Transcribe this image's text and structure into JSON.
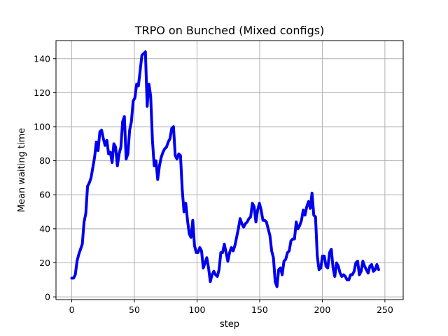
{
  "chart_data": {
    "type": "line",
    "title": "TRPO on Bunched (Mixed configs)",
    "xlabel": "step",
    "ylabel": "Mean waiting time",
    "xlim": [
      -12.6,
      264.6
    ],
    "ylim": [
      -1.6,
      150.6
    ],
    "xticks": [
      0,
      50,
      100,
      150,
      200,
      250
    ],
    "yticks": [
      0,
      20,
      40,
      60,
      80,
      100,
      120,
      140
    ],
    "grid": true,
    "line_color": "#0000ee",
    "series": [
      {
        "values": [
          11,
          11,
          13,
          21,
          25,
          28,
          31,
          44,
          49,
          65,
          67,
          70,
          76,
          82,
          91,
          86,
          97,
          98,
          93,
          89,
          92,
          84,
          85,
          79,
          90,
          88,
          77,
          84,
          88,
          103,
          106,
          81,
          84,
          98,
          103,
          115,
          117,
          125,
          124,
          133,
          142,
          143,
          144,
          112,
          125,
          118,
          92,
          77,
          80,
          69,
          77,
          82,
          85,
          87,
          88,
          91,
          93,
          99,
          100,
          83,
          81,
          84,
          83,
          63,
          50,
          55,
          45,
          37,
          35,
          45,
          30,
          26,
          26,
          29,
          27,
          17,
          20,
          23,
          17,
          9,
          13,
          15,
          13,
          12,
          16,
          26,
          26,
          31,
          26,
          21,
          26,
          29,
          27,
          30,
          35,
          40,
          46,
          43,
          41,
          43,
          44,
          46,
          47,
          55,
          53,
          44,
          51,
          55,
          51,
          45,
          45,
          44,
          40,
          36,
          27,
          23,
          9,
          6,
          16,
          17,
          13,
          21,
          22,
          26,
          27,
          33,
          34,
          34,
          44,
          40,
          42,
          45,
          51,
          48,
          53,
          56,
          52,
          61,
          48,
          47,
          24,
          16,
          17,
          24,
          24,
          18,
          17,
          26,
          28,
          17,
          12,
          20,
          18,
          14,
          12,
          13,
          12,
          10,
          10,
          13,
          13,
          15,
          20,
          21,
          13,
          15,
          21,
          18,
          16,
          14,
          18,
          19,
          15,
          16,
          19,
          16
        ],
        "step_scale": 1.4
      }
    ]
  }
}
